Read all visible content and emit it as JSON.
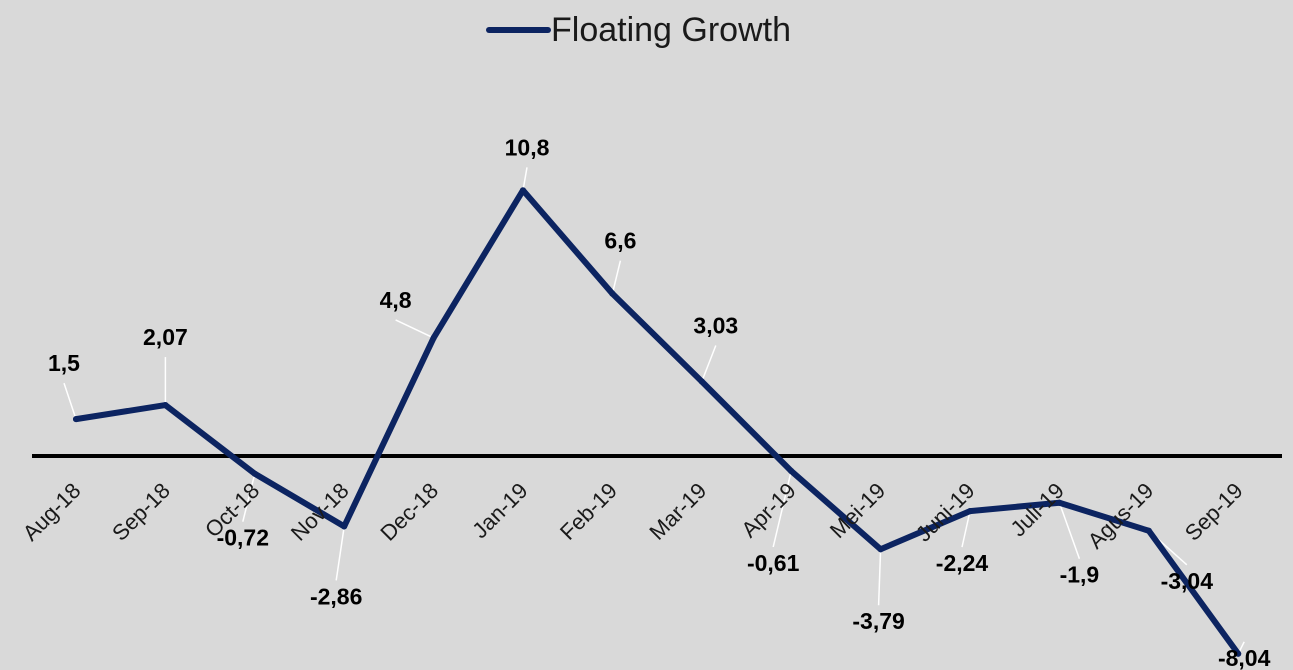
{
  "colors": {
    "background": "#d9d9d9",
    "series_line": "#0c2461",
    "axis_line": "#000000",
    "leader_line": "#ffffff"
  },
  "chart_data": {
    "type": "line",
    "title": "",
    "xlabel": "",
    "ylabel": "",
    "legend_position": "top-center",
    "grid": false,
    "categories": [
      "Aug-18",
      "Sep-18",
      "Oct-18",
      "Nov-18",
      "Dec-18",
      "Jan-19",
      "Feb-19",
      "Mar-19",
      "Apr-19",
      "Mei-19",
      "Juni-19",
      "Juli-19",
      "Agus-19",
      "Sep-19"
    ],
    "series": [
      {
        "name": "Floating Growth",
        "values": [
          1.5,
          2.07,
          -0.72,
          -2.86,
          4.8,
          10.8,
          6.6,
          3.03,
          -0.61,
          -3.79,
          -2.24,
          -1.9,
          -3.04,
          -8.04
        ],
        "labels": [
          "1,5",
          "2,07",
          "-0,72",
          "-2,86",
          "4,8",
          "10,8",
          "6,6",
          "3,03",
          "-0,61",
          "-3,79",
          "-2,24",
          "-1,9",
          "-3,04",
          "-8,04"
        ]
      }
    ]
  }
}
